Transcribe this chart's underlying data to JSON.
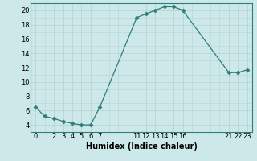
{
  "x": [
    0,
    1,
    2,
    3,
    4,
    5,
    6,
    7,
    11,
    12,
    13,
    14,
    15,
    16,
    21,
    22,
    23
  ],
  "y": [
    6.5,
    5.2,
    4.9,
    4.5,
    4.2,
    4.0,
    4.0,
    6.5,
    19.0,
    19.5,
    20.0,
    20.5,
    20.5,
    20.0,
    11.3,
    11.3,
    11.7
  ],
  "xlabel": "Humidex (Indice chaleur)",
  "ylabel": "",
  "xlim": [
    -0.5,
    23.5
  ],
  "ylim": [
    3.2,
    21.0
  ],
  "yticks": [
    4,
    6,
    8,
    10,
    12,
    14,
    16,
    18,
    20
  ],
  "xticks": [
    0,
    2,
    3,
    4,
    5,
    6,
    7,
    11,
    12,
    13,
    14,
    15,
    16,
    21,
    22,
    23
  ],
  "line_color": "#2e7d7d",
  "bg_color": "#cce8e8",
  "grid_color_major": "#b8d4d4",
  "grid_color_minor": "#d4e8e8",
  "marker": "D",
  "marker_size": 2.5,
  "tick_fontsize": 6,
  "xlabel_fontsize": 7
}
